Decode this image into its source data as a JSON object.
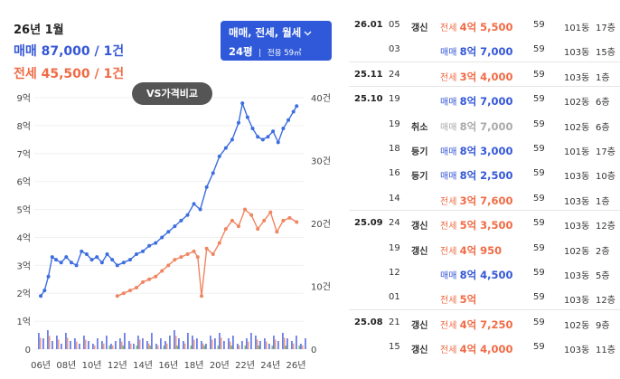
{
  "summary": {
    "month": "26년 1월",
    "sale": "매매 87,000 / 1건",
    "jeonse": "전세 45,500 / 1건"
  },
  "filter": {
    "types": "매매, 전세, 월세",
    "size": "24평",
    "area": "전용 59㎡"
  },
  "vs_button": "VS가격비교",
  "chart_data": {
    "type": "line",
    "left_axis": {
      "ticks": [
        "9억",
        "8억",
        "7억",
        "6억",
        "5억",
        "4억",
        "3억",
        "2억",
        "1억",
        "0"
      ],
      "ylim": [
        0,
        9
      ]
    },
    "right_axis": {
      "ticks": [
        "40건",
        "30건",
        "20건",
        "10건",
        "0"
      ],
      "ylim": [
        0,
        40
      ]
    },
    "x_ticks": [
      "06년",
      "08년",
      "10년",
      "12년",
      "14년",
      "16년",
      "18년",
      "20년",
      "22년",
      "24년",
      "26년"
    ],
    "series": [
      {
        "color": "#3d6ee0",
        "x": [
          2006.0,
          2006.3,
          2006.6,
          2006.9,
          2007.2,
          2007.6,
          2008.0,
          2008.4,
          2008.8,
          2009.2,
          2009.6,
          2010.0,
          2010.4,
          2010.8,
          2011.2,
          2011.6,
          2012.0,
          2012.5,
          2013.0,
          2013.5,
          2014.0,
          2014.5,
          2015.0,
          2015.5,
          2016.0,
          2016.5,
          2017.0,
          2017.5,
          2018.0,
          2018.5,
          2019.0,
          2019.5,
          2020.0,
          2020.5,
          2021.0,
          2021.5,
          2021.8,
          2022.2,
          2022.6,
          2023.0,
          2023.4,
          2023.8,
          2024.2,
          2024.6,
          2025.0,
          2025.4,
          2025.8,
          2026.05
        ],
        "values": [
          1.9,
          2.1,
          2.6,
          3.3,
          3.2,
          3.1,
          3.3,
          3.1,
          3.0,
          3.5,
          3.4,
          3.2,
          3.3,
          3.1,
          3.4,
          3.2,
          3.0,
          3.1,
          3.2,
          3.4,
          3.5,
          3.7,
          3.8,
          4.0,
          4.2,
          4.4,
          4.6,
          4.8,
          5.2,
          5.0,
          5.8,
          6.3,
          6.9,
          7.2,
          7.5,
          8.1,
          8.8,
          8.3,
          7.9,
          7.6,
          7.5,
          7.6,
          7.8,
          7.4,
          7.9,
          8.2,
          8.5,
          8.7
        ]
      },
      {
        "color": "#f08560",
        "x": [
          2012.0,
          2012.5,
          2013.0,
          2013.5,
          2014.0,
          2014.5,
          2015.0,
          2015.5,
          2016.0,
          2016.5,
          2017.0,
          2017.5,
          2018.0,
          2018.3,
          2018.6,
          2019.0,
          2019.5,
          2020.0,
          2020.5,
          2021.0,
          2021.5,
          2022.0,
          2022.5,
          2023.0,
          2023.5,
          2024.0,
          2024.5,
          2025.0,
          2025.5,
          2026.05
        ],
        "values": [
          1.9,
          2.0,
          2.1,
          2.2,
          2.4,
          2.5,
          2.6,
          2.8,
          3.0,
          3.2,
          3.3,
          3.4,
          3.5,
          3.3,
          1.9,
          3.6,
          3.4,
          3.8,
          4.3,
          4.6,
          4.4,
          5.0,
          4.8,
          4.3,
          4.6,
          4.9,
          4.2,
          4.6,
          4.7,
          4.55
        ]
      }
    ]
  },
  "transactions": [
    {
      "ym": "26.01",
      "day": "05",
      "flag": "갱신",
      "type": "전세",
      "price": "4억 5,500",
      "kind": "jeonse",
      "area": "59",
      "dong": "101동",
      "floor": "17층"
    },
    {
      "ym": "",
      "day": "03",
      "flag": "",
      "type": "매매",
      "price": "8억 7,000",
      "kind": "sale",
      "area": "59",
      "dong": "103동",
      "floor": "15층"
    },
    {
      "ym": "25.11",
      "day": "24",
      "flag": "",
      "type": "전세",
      "price": "3억 4,000",
      "kind": "jeonse",
      "area": "59",
      "dong": "103동",
      "floor": "1층"
    },
    {
      "ym": "25.10",
      "day": "19",
      "flag": "",
      "type": "매매",
      "price": "8억 7,000",
      "kind": "sale",
      "area": "59",
      "dong": "102동",
      "floor": "6층"
    },
    {
      "ym": "",
      "day": "19",
      "flag": "취소",
      "type": "매매",
      "price": "8억 7,000",
      "kind": "cancel",
      "area": "59",
      "dong": "102동",
      "floor": "6층"
    },
    {
      "ym": "",
      "day": "18",
      "flag": "등기",
      "type": "매매",
      "price": "8억 3,000",
      "kind": "sale",
      "area": "59",
      "dong": "101동",
      "floor": "17층"
    },
    {
      "ym": "",
      "day": "16",
      "flag": "등기",
      "type": "매매",
      "price": "8억 2,500",
      "kind": "sale",
      "area": "59",
      "dong": "103동",
      "floor": "10층"
    },
    {
      "ym": "",
      "day": "14",
      "flag": "",
      "type": "전세",
      "price": "3억 7,600",
      "kind": "jeonse",
      "area": "59",
      "dong": "103동",
      "floor": "1층"
    },
    {
      "ym": "25.09",
      "day": "24",
      "flag": "갱신",
      "type": "전세",
      "price": "5억 3,500",
      "kind": "jeonse",
      "area": "59",
      "dong": "103동",
      "floor": "12층"
    },
    {
      "ym": "",
      "day": "19",
      "flag": "갱신",
      "type": "전세",
      "price": "4억 950",
      "kind": "jeonse",
      "area": "59",
      "dong": "102동",
      "floor": "2층"
    },
    {
      "ym": "",
      "day": "12",
      "flag": "",
      "type": "매매",
      "price": "8억 4,500",
      "kind": "sale",
      "area": "59",
      "dong": "103동",
      "floor": "5층"
    },
    {
      "ym": "",
      "day": "01",
      "flag": "",
      "type": "전세",
      "price": "5억",
      "kind": "jeonse",
      "area": "59",
      "dong": "103동",
      "floor": "12층"
    },
    {
      "ym": "25.08",
      "day": "21",
      "flag": "갱신",
      "type": "전세",
      "price": "4억 7,250",
      "kind": "jeonse",
      "area": "59",
      "dong": "102동",
      "floor": "9층"
    },
    {
      "ym": "",
      "day": "15",
      "flag": "갱신",
      "type": "전세",
      "price": "4억 4,000",
      "kind": "jeonse",
      "area": "59",
      "dong": "103동",
      "floor": "11층"
    }
  ]
}
